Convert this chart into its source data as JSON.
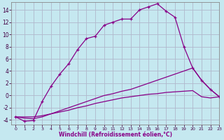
{
  "xlabel": "Windchill (Refroidissement éolien,°C)",
  "xlim": [
    -0.5,
    23
  ],
  "ylim": [
    -4.8,
    15.3
  ],
  "xticks": [
    0,
    1,
    2,
    3,
    4,
    5,
    6,
    7,
    8,
    9,
    10,
    11,
    12,
    13,
    14,
    15,
    16,
    17,
    18,
    19,
    20,
    21,
    22,
    23
  ],
  "yticks": [
    -4,
    -2,
    0,
    2,
    4,
    6,
    8,
    10,
    12,
    14
  ],
  "bg_color": "#c5e8f0",
  "line_color": "#880088",
  "grid_color": "#b0b8cc",
  "line1_x": [
    0,
    1,
    2,
    3,
    4,
    5,
    6,
    7,
    8,
    9,
    10,
    11,
    12,
    13,
    14,
    15,
    16,
    17,
    18,
    19,
    20,
    21,
    22,
    23
  ],
  "line1_y": [
    -3.5,
    -4.2,
    -4.1,
    -1.0,
    1.5,
    3.5,
    5.2,
    7.5,
    9.3,
    9.7,
    11.5,
    12.0,
    12.5,
    12.5,
    14.0,
    14.5,
    15.0,
    13.8,
    12.8,
    8.0,
    4.5,
    2.5,
    1.0,
    -0.2
  ],
  "line2_x": [
    0,
    1,
    2,
    3,
    4,
    5,
    6,
    7,
    8,
    9,
    10,
    11,
    12,
    13,
    14,
    15,
    16,
    17,
    18,
    19,
    20,
    21,
    22,
    23
  ],
  "line2_y": [
    -3.5,
    -3.7,
    -3.8,
    -3.5,
    -3.0,
    -2.5,
    -2.0,
    -1.5,
    -1.0,
    -0.5,
    0.0,
    0.3,
    0.7,
    1.0,
    1.5,
    2.0,
    2.5,
    3.0,
    3.5,
    4.0,
    4.5,
    2.5,
    1.0,
    -0.2
  ],
  "line3_x": [
    0,
    1,
    2,
    3,
    4,
    5,
    6,
    7,
    8,
    9,
    10,
    11,
    12,
    13,
    14,
    15,
    16,
    17,
    18,
    19,
    20,
    21,
    22,
    23
  ],
  "line3_y": [
    -3.5,
    -3.5,
    -3.5,
    -3.3,
    -3.0,
    -2.7,
    -2.4,
    -2.0,
    -1.7,
    -1.3,
    -1.0,
    -0.7,
    -0.4,
    -0.2,
    0.0,
    0.2,
    0.3,
    0.5,
    0.6,
    0.7,
    0.8,
    -0.2,
    -0.4,
    -0.2
  ]
}
